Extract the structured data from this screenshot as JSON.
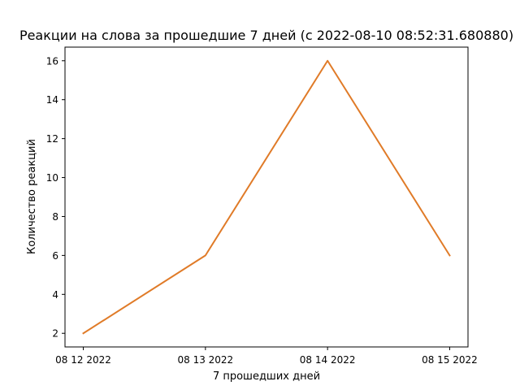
{
  "chart_data": {
    "type": "line",
    "title": "Реакции на слова за прошедшие 7 дней (с 2022-08-10 08:52:31.680880)",
    "xlabel": "7 прошедших дней",
    "ylabel": "Количество реакций",
    "categories": [
      "08 12 2022",
      "08 13 2022",
      "08 14 2022",
      "08 15 2022"
    ],
    "series": [
      {
        "values": [
          2,
          6,
          16,
          6
        ],
        "color": "#e07b28"
      }
    ],
    "y_ticks": [
      2,
      4,
      6,
      8,
      10,
      12,
      14,
      16
    ],
    "ylim": [
      1.3,
      16.7
    ],
    "grid": false
  }
}
